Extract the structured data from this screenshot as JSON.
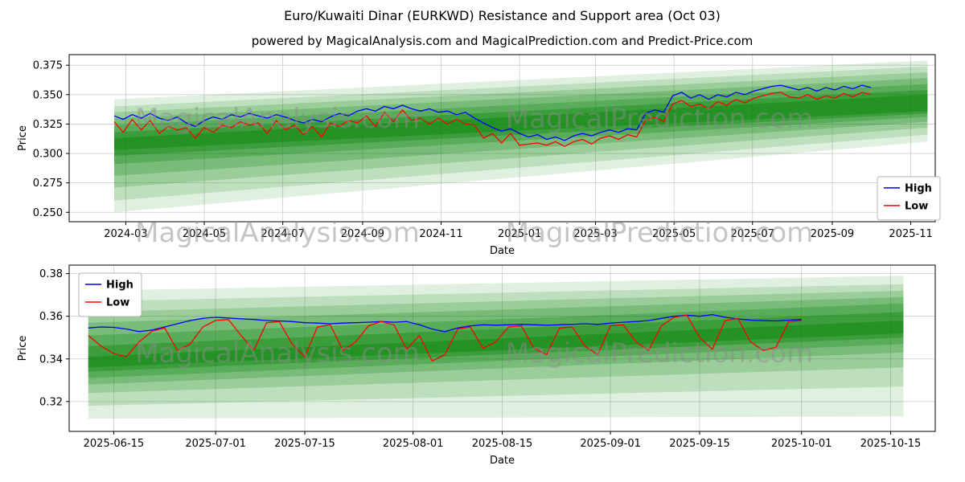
{
  "figure": {
    "title": "Euro/Kuwaiti Dinar (EURKWD) Resistance and Support area (Oct 03)",
    "subtitle": "powered by MagicalAnalysis.com and MagicalPrediction.com and Predict-Price.com"
  },
  "watermarks": {
    "left": "MagicalAnalysis.com",
    "right": "MagicalPrediction.com"
  },
  "colors": {
    "high": "#0000ff",
    "low": "#ff0000",
    "band": "#008000",
    "grid": "#cccccc",
    "axis": "#000000"
  },
  "chart_data": [
    {
      "type": "line",
      "xlabel": "Date",
      "ylabel": "Price",
      "xlim": [
        16,
        689
      ],
      "ylim": [
        0.242,
        0.384
      ],
      "grid": true,
      "legend_pos": "right-center",
      "x_ticks": [
        60,
        121,
        182,
        244,
        305,
        366,
        425,
        486,
        547,
        609,
        670
      ],
      "x_tick_labels": [
        "2024-03",
        "2024-05",
        "2024-07",
        "2024-09",
        "2024-11",
        "2025-01",
        "2025-03",
        "2025-05",
        "2025-07",
        "2025-09",
        "2025-11"
      ],
      "y_ticks": [
        0.25,
        0.275,
        0.3,
        0.325,
        0.35,
        0.375
      ],
      "y_tick_labels": [
        "0.250",
        "0.275",
        "0.300",
        "0.325",
        "0.350",
        "0.375"
      ],
      "x_start": 51,
      "x_step": 7,
      "series": [
        {
          "name": "High",
          "color": "#0000ff",
          "values": [
            0.332,
            0.329,
            0.333,
            0.33,
            0.334,
            0.33,
            0.328,
            0.331,
            0.326,
            0.323,
            0.328,
            0.331,
            0.329,
            0.333,
            0.331,
            0.334,
            0.332,
            0.33,
            0.333,
            0.331,
            0.328,
            0.326,
            0.329,
            0.327,
            0.331,
            0.334,
            0.332,
            0.336,
            0.338,
            0.336,
            0.34,
            0.338,
            0.341,
            0.338,
            0.336,
            0.338,
            0.335,
            0.336,
            0.333,
            0.335,
            0.33,
            0.326,
            0.322,
            0.319,
            0.321,
            0.317,
            0.314,
            0.316,
            0.312,
            0.314,
            0.311,
            0.315,
            0.317,
            0.315,
            0.318,
            0.32,
            0.318,
            0.321,
            0.32,
            0.334,
            0.337,
            0.335,
            0.349,
            0.352,
            0.347,
            0.35,
            0.346,
            0.35,
            0.348,
            0.352,
            0.35,
            0.353,
            0.355,
            0.357,
            0.358,
            0.356,
            0.354,
            0.356,
            0.353,
            0.356,
            0.354,
            0.357,
            0.355,
            0.358,
            0.356
          ]
        },
        {
          "name": "Low",
          "color": "#ff0000",
          "values": [
            0.327,
            0.318,
            0.329,
            0.32,
            0.328,
            0.317,
            0.323,
            0.32,
            0.322,
            0.313,
            0.322,
            0.318,
            0.324,
            0.322,
            0.327,
            0.324,
            0.326,
            0.317,
            0.328,
            0.32,
            0.324,
            0.316,
            0.323,
            0.314,
            0.326,
            0.323,
            0.328,
            0.326,
            0.332,
            0.323,
            0.335,
            0.327,
            0.337,
            0.328,
            0.33,
            0.325,
            0.33,
            0.325,
            0.329,
            0.325,
            0.324,
            0.313,
            0.317,
            0.309,
            0.317,
            0.307,
            0.308,
            0.309,
            0.307,
            0.31,
            0.306,
            0.31,
            0.312,
            0.308,
            0.313,
            0.315,
            0.312,
            0.316,
            0.314,
            0.328,
            0.331,
            0.327,
            0.342,
            0.345,
            0.34,
            0.342,
            0.338,
            0.344,
            0.341,
            0.346,
            0.343,
            0.347,
            0.349,
            0.351,
            0.352,
            0.348,
            0.347,
            0.35,
            0.346,
            0.349,
            0.347,
            0.351,
            0.348,
            0.352,
            0.35
          ]
        }
      ],
      "bands": [
        {
          "x0": 51,
          "x1": 683,
          "b0": 0.25,
          "t0": 0.346,
          "b1": 0.31,
          "t1": 0.379,
          "op": 0.12
        },
        {
          "x0": 51,
          "x1": 683,
          "b0": 0.26,
          "t0": 0.34,
          "b1": 0.316,
          "t1": 0.374,
          "op": 0.15
        },
        {
          "x0": 51,
          "x1": 683,
          "b0": 0.271,
          "t0": 0.335,
          "b1": 0.322,
          "t1": 0.369,
          "op": 0.18
        },
        {
          "x0": 51,
          "x1": 683,
          "b0": 0.281,
          "t0": 0.33,
          "b1": 0.327,
          "t1": 0.364,
          "op": 0.22
        },
        {
          "x0": 51,
          "x1": 683,
          "b0": 0.291,
          "t0": 0.324,
          "b1": 0.331,
          "t1": 0.359,
          "op": 0.26
        },
        {
          "x0": 51,
          "x1": 683,
          "b0": 0.298,
          "t0": 0.318,
          "b1": 0.334,
          "t1": 0.354,
          "op": 0.32
        },
        {
          "x0": 51,
          "x1": 683,
          "b0": 0.303,
          "t0": 0.313,
          "b1": 0.336,
          "t1": 0.35,
          "op": 0.38
        }
      ]
    },
    {
      "type": "line",
      "xlabel": "Date",
      "ylabel": "Price",
      "xlim": [
        524,
        660
      ],
      "ylim": [
        0.306,
        0.384
      ],
      "grid": true,
      "legend_pos": "upper-left",
      "x_ticks": [
        531,
        547,
        561,
        578,
        592,
        609,
        623,
        639,
        653
      ],
      "x_tick_labels": [
        "2025-06-15",
        "2025-07-01",
        "2025-07-15",
        "2025-08-01",
        "2025-08-15",
        "2025-09-01",
        "2025-09-15",
        "2025-10-01",
        "2025-10-15"
      ],
      "y_ticks": [
        0.32,
        0.34,
        0.36,
        0.38
      ],
      "y_tick_labels": [
        "0.32",
        "0.34",
        "0.36",
        "0.38"
      ],
      "x_start": 527,
      "x_step": 2,
      "series": [
        {
          "name": "High",
          "color": "#0000ff",
          "values": [
            0.3545,
            0.355,
            0.3548,
            0.354,
            0.3528,
            0.3535,
            0.355,
            0.3565,
            0.358,
            0.359,
            0.3595,
            0.3592,
            0.3588,
            0.3585,
            0.358,
            0.3578,
            0.3575,
            0.357,
            0.3568,
            0.3565,
            0.3568,
            0.357,
            0.3572,
            0.3575,
            0.3572,
            0.3575,
            0.356,
            0.354,
            0.3528,
            0.3545,
            0.3555,
            0.356,
            0.3558,
            0.356,
            0.3562,
            0.356,
            0.3558,
            0.356,
            0.3562,
            0.3565,
            0.3562,
            0.3568,
            0.3572,
            0.3575,
            0.358,
            0.359,
            0.36,
            0.3605,
            0.36,
            0.3608,
            0.3595,
            0.3588,
            0.3582,
            0.358,
            0.3578,
            0.3582,
            0.3585
          ]
        },
        {
          "name": "Low",
          "color": "#ff0000",
          "values": [
            0.351,
            0.346,
            0.3425,
            0.341,
            0.348,
            0.353,
            0.3545,
            0.344,
            0.347,
            0.355,
            0.358,
            0.3585,
            0.351,
            0.344,
            0.357,
            0.3575,
            0.347,
            0.341,
            0.355,
            0.356,
            0.344,
            0.348,
            0.3555,
            0.3575,
            0.356,
            0.3445,
            0.351,
            0.339,
            0.342,
            0.354,
            0.355,
            0.345,
            0.348,
            0.355,
            0.3555,
            0.345,
            0.342,
            0.3545,
            0.355,
            0.346,
            0.342,
            0.3555,
            0.356,
            0.348,
            0.344,
            0.3555,
            0.3595,
            0.3605,
            0.35,
            0.3445,
            0.358,
            0.359,
            0.348,
            0.344,
            0.3455,
            0.3575,
            0.358
          ]
        }
      ],
      "bands": [
        {
          "x0": 527,
          "x1": 655,
          "b0": 0.312,
          "t0": 0.372,
          "b1": 0.313,
          "t1": 0.379,
          "op": 0.12
        },
        {
          "x0": 527,
          "x1": 655,
          "b0": 0.318,
          "t0": 0.367,
          "b1": 0.327,
          "t1": 0.375,
          "op": 0.15
        },
        {
          "x0": 527,
          "x1": 655,
          "b0": 0.324,
          "t0": 0.362,
          "b1": 0.336,
          "t1": 0.372,
          "op": 0.18
        },
        {
          "x0": 527,
          "x1": 655,
          "b0": 0.328,
          "t0": 0.357,
          "b1": 0.343,
          "t1": 0.369,
          "op": 0.22
        },
        {
          "x0": 527,
          "x1": 655,
          "b0": 0.331,
          "t0": 0.351,
          "b1": 0.347,
          "t1": 0.366,
          "op": 0.26
        },
        {
          "x0": 527,
          "x1": 655,
          "b0": 0.334,
          "t0": 0.346,
          "b1": 0.35,
          "t1": 0.362,
          "op": 0.32
        },
        {
          "x0": 527,
          "x1": 655,
          "b0": 0.336,
          "t0": 0.341,
          "b1": 0.352,
          "t1": 0.358,
          "op": 0.38
        }
      ]
    }
  ]
}
